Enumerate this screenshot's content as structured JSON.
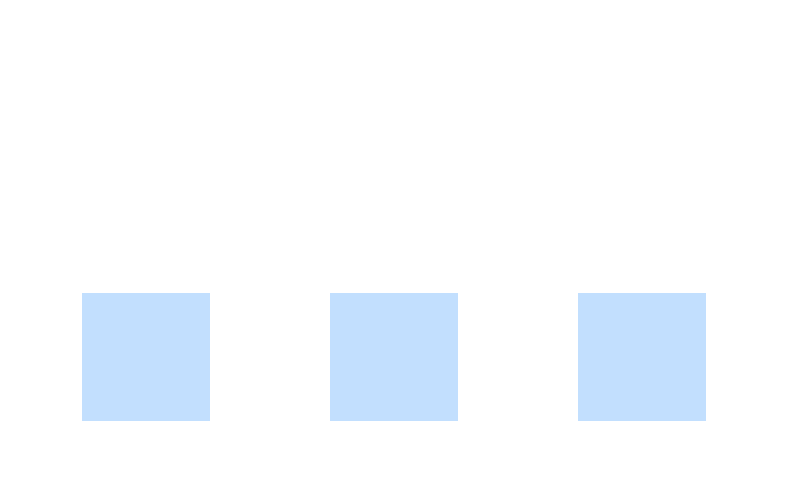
{
  "boxes": [
    {
      "color": "#c2dffe"
    },
    {
      "color": "#c2dffe"
    },
    {
      "color": "#c2dffe"
    }
  ]
}
